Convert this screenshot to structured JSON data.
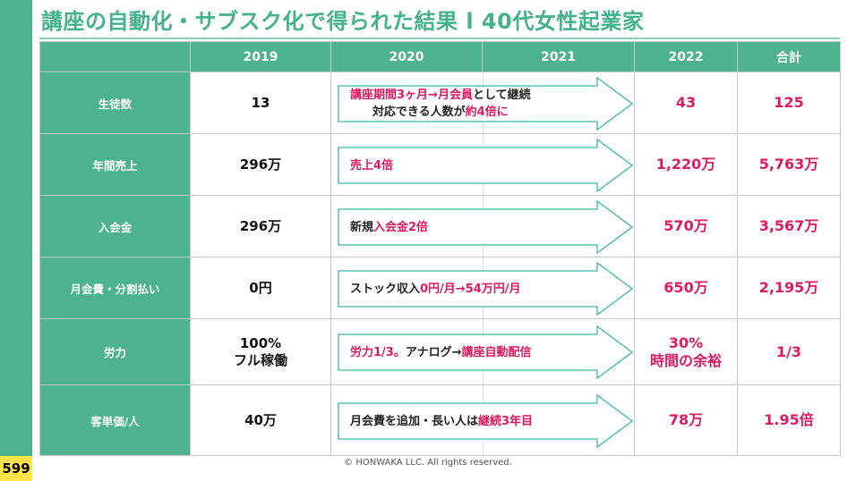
{
  "title": "講座の自動化・サブスク化で得られた結果 l 40代女性起業家",
  "page_number": "599",
  "copyright": "© HONWAKA LLC. All rights reserved.",
  "colors": {
    "accent": "#4db38e",
    "highlight": "#e0185f",
    "page_badge": "#ffe14a"
  },
  "table": {
    "headers": [
      "",
      "2019",
      "2020",
      "2021",
      "2022",
      "合計"
    ],
    "rows": [
      {
        "label": "生徒数",
        "v2019": "13",
        "arrow": {
          "line1_a": "講座期間3ヶ月→月会員",
          "line1_b": "として継続",
          "line2_a": "対応できる人数が",
          "line2_b": "約4倍に"
        },
        "v2022": "43",
        "total": "125"
      },
      {
        "label": "年間売上",
        "v2019": "296万",
        "arrow": {
          "a": "",
          "b": "売上4倍"
        },
        "v2022": "1,220万",
        "total": "5,763万"
      },
      {
        "label": "入会金",
        "v2019": "296万",
        "arrow": {
          "a": "新規",
          "b": "入会金2倍"
        },
        "v2022": "570万",
        "total": "3,567万"
      },
      {
        "label": "月会費・分割払い",
        "v2019": "0円",
        "arrow": {
          "a": "ストック収入",
          "b": "0円/月→54万円/月"
        },
        "v2022": "650万",
        "total": "2,195万"
      },
      {
        "label": "労力",
        "v2019_line1": "100%",
        "v2019_line2": "フル稼働",
        "arrow": {
          "a": "労力1/3。",
          "b": "アナログ→",
          "c": "講座自動配信"
        },
        "v2022_line1": "30%",
        "v2022_line2": "時間の余裕",
        "total": "1/3"
      },
      {
        "label": "客単価/人",
        "v2019": "40万",
        "arrow": {
          "a": "月会費を追加・長い人は",
          "b": "継続3年目"
        },
        "v2022": "78万",
        "total": "1.95倍"
      }
    ]
  }
}
